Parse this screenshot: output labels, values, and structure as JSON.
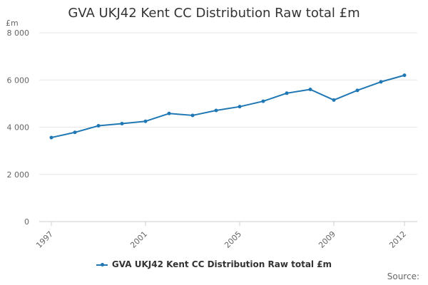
{
  "colors": {
    "series": "#1f77b4",
    "grid": "#e6e6e6",
    "axis_text": "#666666"
  },
  "source_label": "Source:",
  "chart_data": {
    "type": "line",
    "title": "GVA UKJ42 Kent CC Distribution Raw total £m",
    "ylabel": "£m",
    "xlabel": "",
    "ylim": [
      0,
      8000
    ],
    "y_ticks": [
      0,
      2000,
      4000,
      6000,
      8000
    ],
    "y_tick_labels": [
      "0",
      "2 000",
      "4 000",
      "6 000",
      "8 000"
    ],
    "x_ticks": [
      1997,
      2001,
      2005,
      2009,
      2012
    ],
    "x_tick_labels": [
      "1997",
      "2001",
      "2005",
      "2009",
      "2012"
    ],
    "grid": true,
    "legend_position": "bottom-center",
    "series": [
      {
        "name": "GVA UKJ42 Kent CC Distribution Raw total £m",
        "x": [
          1997,
          1998,
          1999,
          2000,
          2001,
          2002,
          2003,
          2004,
          2005,
          2006,
          2007,
          2008,
          2009,
          2010,
          2011,
          2012
        ],
        "values": [
          3560,
          3780,
          4060,
          4150,
          4250,
          4580,
          4500,
          4710,
          4870,
          5100,
          5440,
          5600,
          5150,
          5560,
          5920,
          6200
        ]
      }
    ]
  }
}
